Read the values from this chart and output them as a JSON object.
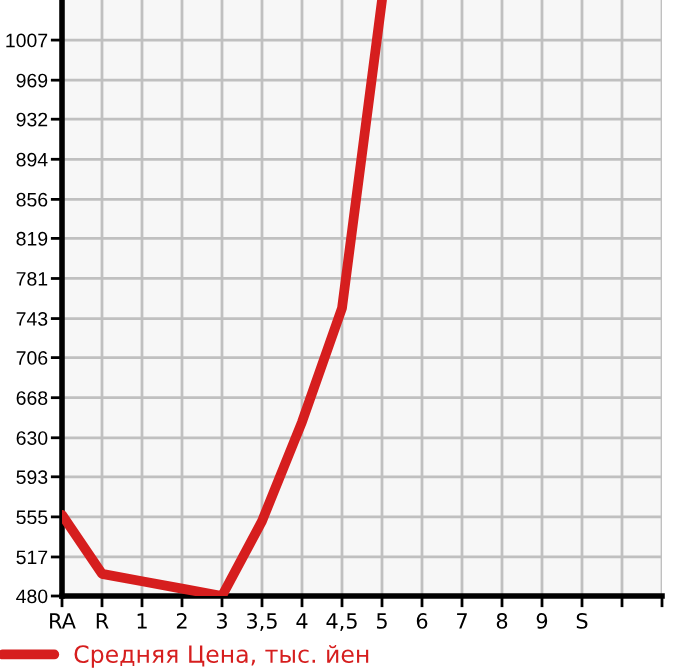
{
  "chart_data": {
    "type": "line",
    "categories": [
      "RA",
      "R",
      "1",
      "2",
      "3",
      "3,5",
      "4",
      "4,5",
      "5",
      "6",
      "7",
      "8",
      "9",
      "S",
      null,
      null
    ],
    "series": [
      {
        "name": "Средняя Цена, тыс. йен",
        "color": "#d61e1e",
        "values": [
          557,
          501,
          494,
          487,
          480,
          551,
          645,
          753,
          1045,
          null,
          null,
          null,
          null,
          null,
          null,
          null
        ]
      }
    ],
    "ylim": [
      480,
      1045
    ],
    "yticks": [
      480,
      517,
      555,
      593,
      630,
      668,
      706,
      743,
      781,
      819,
      856,
      894,
      932,
      969,
      1007
    ],
    "grid": true,
    "legend": "bottom left",
    "marker": "none",
    "line_style": "solid"
  }
}
